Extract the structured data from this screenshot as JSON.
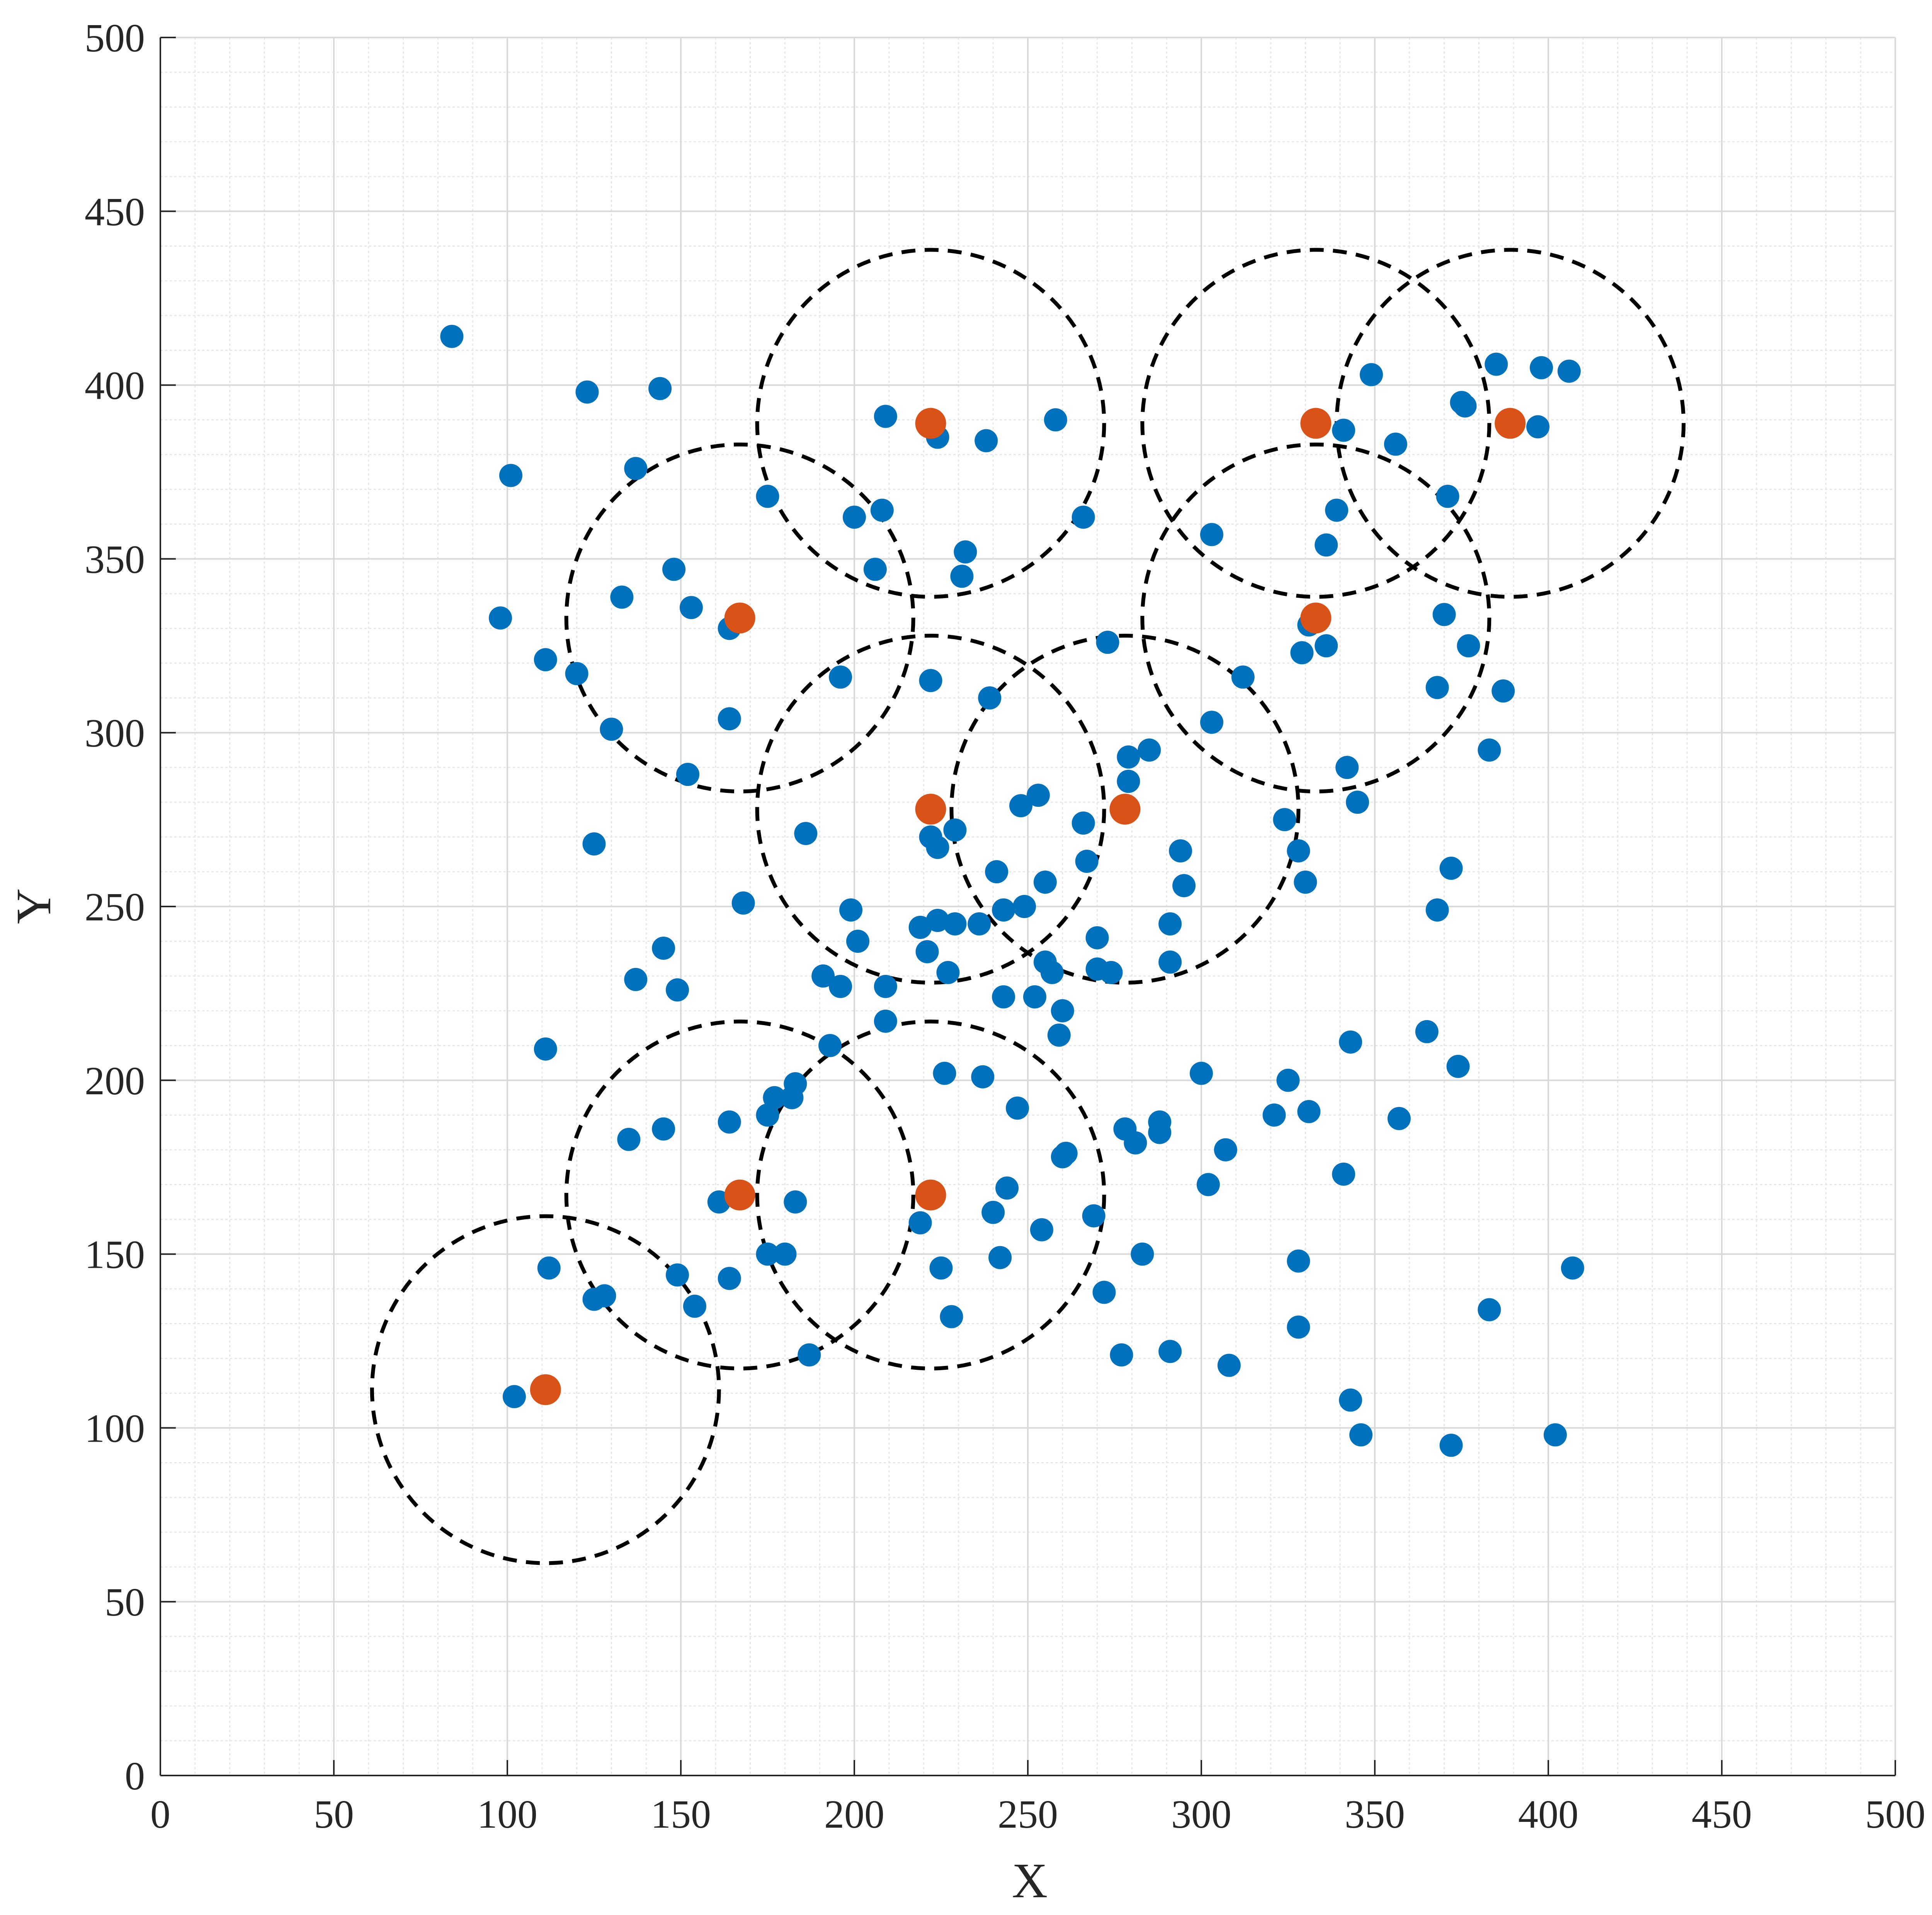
{
  "chart_data": {
    "type": "scatter",
    "title": "",
    "xlabel": "X",
    "ylabel": "Y",
    "xlim": [
      0,
      500
    ],
    "ylim": [
      0,
      500
    ],
    "xticks": [
      0,
      50,
      100,
      150,
      200,
      250,
      300,
      350,
      400,
      450,
      500
    ],
    "yticks": [
      0,
      50,
      100,
      150,
      200,
      250,
      300,
      350,
      400,
      450,
      500
    ],
    "grid": true,
    "minor_grid": true,
    "legend": null,
    "colors": {
      "points": "#0072BD",
      "centers": "#D95319",
      "circles": "#000000",
      "grid": "#d9d9d9",
      "axis": "#262626"
    },
    "circle_radius": 50,
    "series": [
      {
        "role": "points",
        "points": [
          [
            84,
            414
          ],
          [
            123,
            398
          ],
          [
            144,
            399
          ],
          [
            101,
            374
          ],
          [
            137,
            376
          ],
          [
            98,
            333
          ],
          [
            111,
            321
          ],
          [
            120,
            317
          ],
          [
            133,
            339
          ],
          [
            148,
            347
          ],
          [
            153,
            336
          ],
          [
            164,
            330
          ],
          [
            130,
            301
          ],
          [
            164,
            304
          ],
          [
            152,
            288
          ],
          [
            125,
            268
          ],
          [
            175,
            368
          ],
          [
            209,
            391
          ],
          [
            224,
            385
          ],
          [
            238,
            384
          ],
          [
            258,
            390
          ],
          [
            200,
            362
          ],
          [
            208,
            364
          ],
          [
            206,
            347
          ],
          [
            232,
            352
          ],
          [
            231,
            345
          ],
          [
            266,
            362
          ],
          [
            196,
            316
          ],
          [
            222,
            315
          ],
          [
            239,
            310
          ],
          [
            186,
            271
          ],
          [
            168,
            251
          ],
          [
            222,
            270
          ],
          [
            224,
            267
          ],
          [
            229,
            272
          ],
          [
            248,
            279
          ],
          [
            253,
            282
          ],
          [
            241,
            260
          ],
          [
            243,
            249
          ],
          [
            249,
            250
          ],
          [
            255,
            257
          ],
          [
            266,
            274
          ],
          [
            267,
            263
          ],
          [
            219,
            244
          ],
          [
            224,
            246
          ],
          [
            229,
            245
          ],
          [
            236,
            245
          ],
          [
            199,
            249
          ],
          [
            201,
            240
          ],
          [
            221,
            237
          ],
          [
            227,
            231
          ],
          [
            191,
            230
          ],
          [
            196,
            227
          ],
          [
            209,
            227
          ],
          [
            209,
            217
          ],
          [
            243,
            224
          ],
          [
            252,
            224
          ],
          [
            255,
            234
          ],
          [
            257,
            231
          ],
          [
            260,
            220
          ],
          [
            259,
            213
          ],
          [
            270,
            241
          ],
          [
            270,
            232
          ],
          [
            274,
            231
          ],
          [
            273,
            326
          ],
          [
            279,
            293
          ],
          [
            285,
            295
          ],
          [
            279,
            286
          ],
          [
            294,
            266
          ],
          [
            295,
            256
          ],
          [
            291,
            245
          ],
          [
            291,
            234
          ],
          [
            303,
            357
          ],
          [
            303,
            303
          ],
          [
            312,
            316
          ],
          [
            324,
            275
          ],
          [
            328,
            266
          ],
          [
            330,
            257
          ],
          [
            341,
            387
          ],
          [
            349,
            403
          ],
          [
            356,
            383
          ],
          [
            339,
            364
          ],
          [
            336,
            354
          ],
          [
            331,
            331
          ],
          [
            336,
            325
          ],
          [
            329,
            323
          ],
          [
            342,
            290
          ],
          [
            345,
            280
          ],
          [
            371,
            368
          ],
          [
            370,
            334
          ],
          [
            375,
            395
          ],
          [
            376,
            394
          ],
          [
            385,
            406
          ],
          [
            397,
            388
          ],
          [
            398,
            405
          ],
          [
            406,
            404
          ],
          [
            377,
            325
          ],
          [
            368,
            313
          ],
          [
            387,
            312
          ],
          [
            383,
            295
          ],
          [
            372,
            261
          ],
          [
            368,
            249
          ],
          [
            111,
            209
          ],
          [
            145,
            238
          ],
          [
            137,
            229
          ],
          [
            149,
            226
          ],
          [
            135,
            183
          ],
          [
            145,
            186
          ],
          [
            164,
            188
          ],
          [
            175,
            190
          ],
          [
            177,
            195
          ],
          [
            182,
            195
          ],
          [
            183,
            199
          ],
          [
            193,
            210
          ],
          [
            161,
            165
          ],
          [
            183,
            165
          ],
          [
            149,
            144
          ],
          [
            154,
            135
          ],
          [
            164,
            143
          ],
          [
            175,
            150
          ],
          [
            180,
            150
          ],
          [
            112,
            146
          ],
          [
            125,
            137
          ],
          [
            128,
            138
          ],
          [
            102,
            109
          ],
          [
            111,
            110
          ],
          [
            187,
            121
          ],
          [
            226,
            202
          ],
          [
            237,
            201
          ],
          [
            247,
            192
          ],
          [
            219,
            159
          ],
          [
            225,
            146
          ],
          [
            228,
            132
          ],
          [
            240,
            162
          ],
          [
            242,
            149
          ],
          [
            244,
            169
          ],
          [
            254,
            157
          ],
          [
            260,
            178
          ],
          [
            261,
            179
          ],
          [
            269,
            161
          ],
          [
            272,
            139
          ],
          [
            277,
            121
          ],
          [
            278,
            186
          ],
          [
            281,
            182
          ],
          [
            283,
            150
          ],
          [
            288,
            188
          ],
          [
            288,
            185
          ],
          [
            291,
            122
          ],
          [
            300,
            202
          ],
          [
            302,
            170
          ],
          [
            307,
            180
          ],
          [
            308,
            118
          ],
          [
            325,
            200
          ],
          [
            321,
            190
          ],
          [
            331,
            191
          ],
          [
            328,
            148
          ],
          [
            328,
            129
          ],
          [
            341,
            173
          ],
          [
            343,
            211
          ],
          [
            343,
            108
          ],
          [
            346,
            98
          ],
          [
            357,
            189
          ],
          [
            365,
            214
          ],
          [
            374,
            204
          ],
          [
            372,
            95
          ],
          [
            383,
            134
          ],
          [
            402,
            98
          ],
          [
            407,
            146
          ]
        ]
      },
      {
        "role": "centers",
        "points": [
          [
            222,
            389
          ],
          [
            333,
            389
          ],
          [
            389,
            389
          ],
          [
            167,
            333
          ],
          [
            333,
            333
          ],
          [
            222,
            278
          ],
          [
            278,
            278
          ],
          [
            167,
            167
          ],
          [
            222,
            167
          ],
          [
            111,
            111
          ]
        ]
      }
    ]
  }
}
